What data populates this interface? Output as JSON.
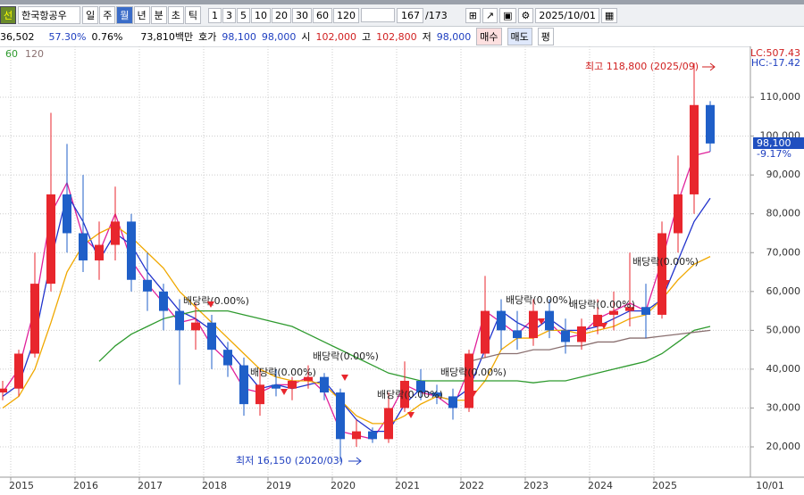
{
  "toolbar": {
    "stock_icon": "선",
    "stock_name": "한국항공우",
    "periods": [
      "일",
      "주",
      "월",
      "년",
      "분",
      "초",
      "틱"
    ],
    "selected_period": "월",
    "intervals": [
      "1",
      "3",
      "5",
      "10",
      "20",
      "30",
      "60",
      "120"
    ],
    "count": "167",
    "total": "/173",
    "date": "2025/10/01"
  },
  "quote_bar": {
    "volume": "36,502",
    "ratio": "57.30%",
    "turnover": "0.76%",
    "amount": "73,810백만",
    "bid_label": "호가",
    "ask": "98,100",
    "bid": "98,000",
    "open_label": "시",
    "open": "102,000",
    "high_label": "고",
    "high": "102,800",
    "low_label": "저",
    "low": "98,000",
    "buy": "매수",
    "sell": "매도",
    "avg": "평"
  },
  "chart_data": {
    "type": "candlestick",
    "categories": [
      null,
      "2015",
      null,
      null,
      null,
      "2016",
      null,
      null,
      null,
      "2017",
      null,
      null,
      null,
      "2018",
      null,
      null,
      null,
      "2019",
      null,
      null,
      null,
      "2020",
      null,
      null,
      null,
      "2021",
      null,
      null,
      null,
      "2022",
      null,
      null,
      null,
      "2023",
      null,
      null,
      null,
      "2024",
      null,
      null,
      null,
      "2025",
      null,
      null,
      null
    ],
    "open": [
      34000,
      35000,
      44000,
      62000,
      85000,
      75000,
      68000,
      72000,
      78000,
      63000,
      60000,
      55000,
      50000,
      52000,
      45000,
      41000,
      31000,
      36000,
      35000,
      37000,
      38000,
      34000,
      22000,
      24000,
      22000,
      30000,
      37000,
      34000,
      33000,
      30000,
      44000,
      55000,
      50000,
      48000,
      55000,
      50000,
      47000,
      51000,
      54000,
      55000,
      56000,
      54000,
      75000,
      85000,
      108000
    ],
    "high": [
      37000,
      45000,
      70000,
      106000,
      98000,
      90000,
      78000,
      87000,
      80000,
      70000,
      62000,
      58000,
      57000,
      54000,
      47000,
      43000,
      40000,
      40000,
      38000,
      41000,
      39000,
      35000,
      27000,
      25000,
      34000,
      42000,
      40000,
      36000,
      35000,
      45000,
      64000,
      58000,
      55000,
      58000,
      58000,
      53000,
      53000,
      58000,
      60000,
      70000,
      62000,
      78000,
      95000,
      118800,
      109000
    ],
    "low": [
      32000,
      33000,
      43000,
      60000,
      70000,
      65000,
      63000,
      68000,
      60000,
      55000,
      50000,
      36000,
      45000,
      40000,
      38000,
      28000,
      28000,
      33000,
      32000,
      35000,
      32000,
      16150,
      20000,
      21000,
      21000,
      29000,
      32000,
      31000,
      27000,
      29000,
      43000,
      45000,
      45000,
      46000,
      48000,
      44000,
      45000,
      49000,
      50000,
      51000,
      48000,
      53000,
      70000,
      80000,
      96000
    ],
    "close": [
      35000,
      44000,
      62000,
      85000,
      75000,
      68000,
      72000,
      78000,
      63000,
      60000,
      55000,
      50000,
      52000,
      45000,
      41000,
      31000,
      36000,
      35000,
      37000,
      38000,
      34000,
      22000,
      24000,
      22000,
      30000,
      37000,
      34000,
      33000,
      30000,
      44000,
      55000,
      50000,
      48000,
      55000,
      50000,
      47000,
      51000,
      54000,
      55000,
      56000,
      54000,
      75000,
      85000,
      108000,
      98100
    ],
    "up_color": "#e8262d",
    "down_color": "#1f5fc8",
    "series": [
      {
        "color": "#e0209a",
        "values": [
          34000,
          40000,
          56000,
          80000,
          88000,
          74000,
          70000,
          80000,
          68000,
          62000,
          57000,
          52000,
          53000,
          46000,
          42000,
          35000,
          34000,
          36000,
          36000,
          38000,
          34000,
          24000,
          23000,
          22000,
          28000,
          36000,
          34000,
          33000,
          30000,
          40000,
          55000,
          52000,
          49000,
          53000,
          52000,
          48000,
          49000,
          53000,
          55000,
          57000,
          55000,
          68000,
          83000,
          95000,
          96000
        ]
      },
      {
        "color": "#2233cc",
        "values": [
          33000,
          36000,
          48000,
          68000,
          85000,
          78000,
          68000,
          75000,
          72000,
          65000,
          60000,
          55000,
          53000,
          50000,
          45000,
          40000,
          35000,
          36000,
          35000,
          36000,
          37000,
          32000,
          27000,
          24000,
          24000,
          31000,
          35000,
          33000,
          32000,
          35000,
          45000,
          55000,
          52000,
          50000,
          53000,
          50000,
          50000,
          51000,
          53000,
          55000,
          55000,
          58000,
          68000,
          78000,
          84000
        ]
      },
      {
        "color": "#f0a800",
        "values": [
          30000,
          33000,
          40000,
          52000,
          65000,
          72000,
          75000,
          77000,
          74000,
          70000,
          66000,
          60000,
          56000,
          52000,
          48000,
          44000,
          40000,
          38000,
          37000,
          37000,
          36000,
          32000,
          28000,
          26000,
          26000,
          28000,
          31000,
          33000,
          32000,
          32000,
          37000,
          45000,
          48000,
          48000,
          50000,
          50000,
          49000,
          50000,
          51000,
          53000,
          54000,
          58000,
          63000,
          67000,
          69000
        ]
      },
      {
        "name": "60",
        "color": "#2e9a2e",
        "values": [
          null,
          null,
          null,
          null,
          null,
          null,
          42000,
          46000,
          49000,
          51000,
          53000,
          54000,
          55000,
          55000,
          55000,
          54000,
          53000,
          52000,
          51000,
          49000,
          47000,
          45000,
          43000,
          41000,
          39000,
          38000,
          37000,
          37000,
          37000,
          37000,
          37000,
          37000,
          37000,
          36500,
          37000,
          37000,
          38000,
          39000,
          40000,
          41000,
          42000,
          44000,
          47000,
          50000,
          51000
        ]
      },
      {
        "name": "120",
        "color": "#8a7070",
        "values": [
          null,
          null,
          null,
          null,
          null,
          null,
          null,
          null,
          null,
          null,
          null,
          null,
          null,
          null,
          null,
          null,
          null,
          null,
          null,
          null,
          null,
          null,
          null,
          null,
          null,
          null,
          null,
          null,
          null,
          42000,
          43000,
          44000,
          44000,
          45000,
          45000,
          46000,
          46000,
          47000,
          47000,
          48000,
          48000,
          48500,
          49000,
          49500,
          50000
        ]
      }
    ],
    "ylim": [
      12200,
      123100
    ],
    "yticks": [
      {
        "value": 20000,
        "label": "20,000"
      },
      {
        "value": 30000,
        "label": "30,000"
      },
      {
        "value": 40000,
        "label": "40,000"
      },
      {
        "value": 50000,
        "label": "50,000"
      },
      {
        "value": 60000,
        "label": "60,000"
      },
      {
        "value": 70000,
        "label": "70,000"
      },
      {
        "value": 80000,
        "label": "80,000"
      },
      {
        "value": 90000,
        "label": "90,000"
      },
      {
        "value": 100000,
        "label": "100,000"
      },
      {
        "value": 110000,
        "label": "110,000"
      }
    ],
    "grid": true,
    "x_end_label": "10/01",
    "lc_label": "LC:507.43",
    "hc_label": "HC:-17.42",
    "price_tag": "98,100",
    "change_tag": "-9.17%",
    "high_note": "최고 118,800 (2025/09)",
    "low_note": "최저 16,150 (2020/03)",
    "annotations": [
      "배당락(0.00%)",
      "배당락(0.00%)",
      "배당락(0.00%)",
      "배당락(0.00%)",
      "배당락(0.00%)",
      "배당락(0.00%)",
      "배당락(0.00%)",
      "배당락(0.00%)"
    ]
  }
}
